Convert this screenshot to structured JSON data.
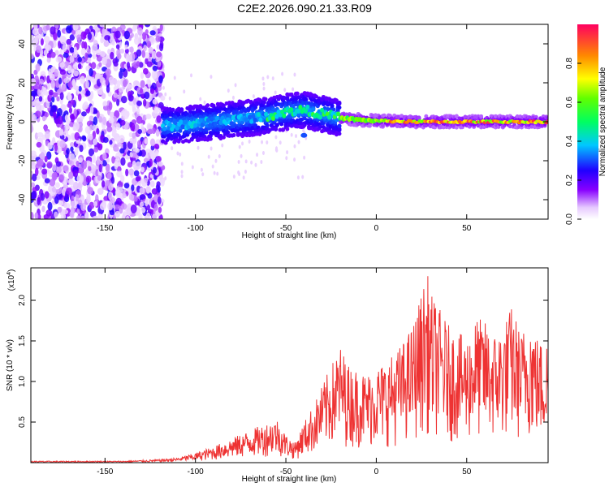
{
  "title": "C2E2.2026.090.21.33.R09",
  "chart_data": [
    {
      "type": "heatmap",
      "xlabel": "Height of straight line (km)",
      "ylabel": "Frequency (Hz)",
      "xlim": [
        -191,
        95
      ],
      "ylim": [
        -50,
        50
      ],
      "xticks": [
        -150,
        -100,
        -50,
        0,
        50
      ],
      "xtick_labels": [
        "-150",
        "-100",
        "-50",
        "0",
        "50"
      ],
      "yticks": [
        -40,
        -20,
        0,
        20,
        40
      ],
      "ytick_labels": [
        "-40",
        "-20",
        "0",
        "20",
        "40"
      ],
      "colorbar": {
        "label": "Normalized spectral amplitude",
        "range": [
          0,
          1
        ],
        "ticks": [
          0.0,
          0.2,
          0.4,
          0.6,
          0.8
        ],
        "tick_labels": [
          "0.0",
          "0.2",
          "0.4",
          "0.6",
          "0.8"
        ]
      },
      "ridge": {
        "description_points": [
          [
            -115,
            -2
          ],
          [
            -100,
            -1
          ],
          [
            -80,
            1
          ],
          [
            -60,
            3
          ],
          [
            -50,
            5
          ],
          [
            -40,
            6
          ],
          [
            -30,
            4
          ],
          [
            -20,
            2
          ],
          [
            -10,
            1
          ],
          [
            0,
            0.5
          ],
          [
            20,
            0
          ],
          [
            50,
            0
          ],
          [
            95,
            0
          ]
        ]
      }
    },
    {
      "type": "line",
      "xlabel": "Height of straight line (km)",
      "ylabel": "SNR (10 * v/v)",
      "yscale_label": "(x10",
      "yscale_exp": "4",
      "xlim": [
        -191,
        95
      ],
      "ylim": [
        0,
        2.4
      ],
      "xticks": [
        -150,
        -100,
        -50,
        0,
        50
      ],
      "xtick_labels": [
        "-150",
        "-100",
        "-50",
        "0",
        "50"
      ],
      "yticks": [
        0.5,
        1.0,
        1.5,
        2.0
      ],
      "ytick_labels": [
        "0.5",
        "1.0",
        "1.5",
        "2.0"
      ],
      "color": "#ee3333",
      "envelope": {
        "x": [
          -191,
          -140,
          -120,
          -110,
          -100,
          -90,
          -80,
          -70,
          -60,
          -55,
          -50,
          -45,
          -40,
          -35,
          -30,
          -25,
          -20,
          -15,
          -10,
          -5,
          0,
          5,
          10,
          15,
          20,
          25,
          28,
          30,
          35,
          40,
          45,
          50,
          55,
          60,
          65,
          70,
          75,
          80,
          85,
          90,
          95
        ],
        "y": [
          0.02,
          0.02,
          0.04,
          0.06,
          0.12,
          0.2,
          0.3,
          0.4,
          0.5,
          0.55,
          0.35,
          0.25,
          0.5,
          0.7,
          0.95,
          1.2,
          1.45,
          1.2,
          1.15,
          1.1,
          1.2,
          1.25,
          1.35,
          1.5,
          1.7,
          2.1,
          2.38,
          2.1,
          1.9,
          1.7,
          1.6,
          1.55,
          1.8,
          1.75,
          1.6,
          1.7,
          1.95,
          1.6,
          1.85,
          1.5,
          1.55
        ]
      }
    }
  ]
}
